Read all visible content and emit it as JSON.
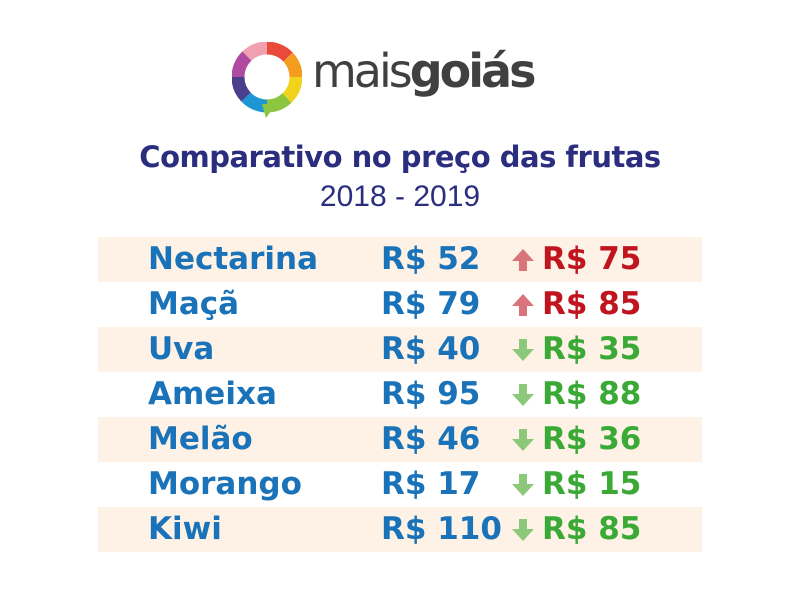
{
  "brand": {
    "part1": "mais",
    "part2": "goiás"
  },
  "title": "Comparativo no preço das frutas",
  "subtitle": "2018 - 2019",
  "colors": {
    "title": "#2b2e7f",
    "price_old": "#1a72b8",
    "up": "#c0141f",
    "up_arrow": "#d9747a",
    "down": "#3aa935",
    "down_arrow": "#8cc87a",
    "row_shade": "#fdf2e5"
  },
  "rows": [
    {
      "fruit": "Nectarina",
      "price_2018": "R$ 52",
      "price_2019": "R$ 75",
      "trend": "up"
    },
    {
      "fruit": "Maçã",
      "price_2018": "R$ 79",
      "price_2019": "R$ 85",
      "trend": "up"
    },
    {
      "fruit": "Uva",
      "price_2018": "R$ 40",
      "price_2019": "R$ 35",
      "trend": "down"
    },
    {
      "fruit": "Ameixa",
      "price_2018": "R$ 95",
      "price_2019": "R$ 88",
      "trend": "down"
    },
    {
      "fruit": "Melão",
      "price_2018": "R$ 46",
      "price_2019": "R$ 36",
      "trend": "down"
    },
    {
      "fruit": "Morango",
      "price_2018": "R$ 17",
      "price_2019": "R$ 15",
      "trend": "down"
    },
    {
      "fruit": "Kiwi",
      "price_2018": "R$ 110",
      "price_2019": "R$ 85",
      "trend": "down"
    }
  ]
}
